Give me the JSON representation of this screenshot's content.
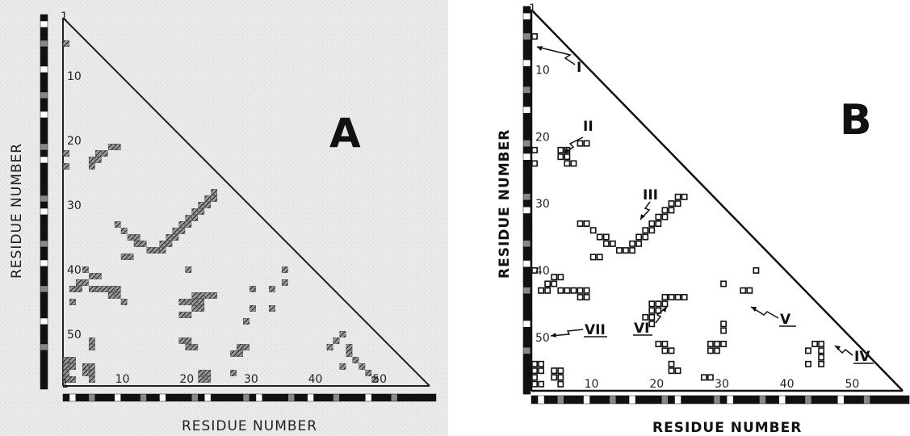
{
  "panels": [
    {
      "letter": "A",
      "axis_label": "RESIDUE NUMBER",
      "y_ticks": [
        1,
        10,
        20,
        30,
        40,
        50
      ],
      "x_ticks": [
        1,
        10,
        20,
        30,
        40,
        50
      ],
      "n_residues": 58,
      "contacts": [
        [
          5,
          1
        ],
        [
          21,
          8
        ],
        [
          21,
          9
        ],
        [
          22,
          6
        ],
        [
          22,
          7
        ],
        [
          23,
          5
        ],
        [
          23,
          6
        ],
        [
          24,
          5
        ],
        [
          22,
          1
        ],
        [
          24,
          1
        ],
        [
          28,
          24
        ],
        [
          29,
          23
        ],
        [
          29,
          24
        ],
        [
          30,
          22
        ],
        [
          30,
          23
        ],
        [
          31,
          21
        ],
        [
          31,
          22
        ],
        [
          32,
          20
        ],
        [
          32,
          21
        ],
        [
          33,
          19
        ],
        [
          33,
          20
        ],
        [
          34,
          18
        ],
        [
          34,
          19
        ],
        [
          35,
          17
        ],
        [
          35,
          18
        ],
        [
          36,
          16
        ],
        [
          36,
          17
        ],
        [
          37,
          14
        ],
        [
          37,
          15
        ],
        [
          37,
          16
        ],
        [
          36,
          12
        ],
        [
          36,
          13
        ],
        [
          35,
          11
        ],
        [
          35,
          12
        ],
        [
          34,
          10
        ],
        [
          33,
          9
        ],
        [
          38,
          10
        ],
        [
          38,
          11
        ],
        [
          40,
          4
        ],
        [
          41,
          5
        ],
        [
          41,
          6
        ],
        [
          42,
          3
        ],
        [
          42,
          4
        ],
        [
          43,
          2
        ],
        [
          43,
          3
        ],
        [
          43,
          5
        ],
        [
          43,
          6
        ],
        [
          43,
          7
        ],
        [
          43,
          8
        ],
        [
          43,
          9
        ],
        [
          44,
          8
        ],
        [
          44,
          9
        ],
        [
          45,
          2
        ],
        [
          45,
          10
        ],
        [
          40,
          20
        ],
        [
          40,
          35
        ],
        [
          42,
          35
        ],
        [
          43,
          30
        ],
        [
          43,
          33
        ],
        [
          44,
          21
        ],
        [
          44,
          22
        ],
        [
          44,
          23
        ],
        [
          44,
          24
        ],
        [
          45,
          19
        ],
        [
          45,
          20
        ],
        [
          45,
          21
        ],
        [
          45,
          22
        ],
        [
          46,
          21
        ],
        [
          46,
          22
        ],
        [
          46,
          30
        ],
        [
          46,
          33
        ],
        [
          47,
          19
        ],
        [
          47,
          20
        ],
        [
          48,
          29
        ],
        [
          51,
          19
        ],
        [
          51,
          20
        ],
        [
          52,
          20
        ],
        [
          52,
          21
        ],
        [
          52,
          28
        ],
        [
          52,
          29
        ],
        [
          53,
          27
        ],
        [
          53,
          28
        ],
        [
          51,
          5
        ],
        [
          52,
          5
        ],
        [
          50,
          44
        ],
        [
          51,
          43
        ],
        [
          52,
          42
        ],
        [
          52,
          45
        ],
        [
          53,
          45
        ],
        [
          54,
          46
        ],
        [
          55,
          47
        ],
        [
          56,
          48
        ],
        [
          57,
          49
        ],
        [
          55,
          44
        ],
        [
          54,
          1
        ],
        [
          54,
          2
        ],
        [
          55,
          1
        ],
        [
          55,
          2
        ],
        [
          55,
          4
        ],
        [
          55,
          5
        ],
        [
          56,
          1
        ],
        [
          56,
          4
        ],
        [
          56,
          5
        ],
        [
          57,
          1
        ],
        [
          57,
          2
        ],
        [
          57,
          5
        ],
        [
          56,
          22
        ],
        [
          56,
          23
        ],
        [
          57,
          22
        ],
        [
          57,
          23
        ],
        [
          56,
          27
        ]
      ],
      "seq_pattern": "bwbbhbbbwbbbhbbwbbbbhbwbbbbbhbwbbbbhbbwbbbhbbbbwbbbhbbbbbb"
    },
    {
      "letter": "B",
      "axis_label": "RESIDUE NUMBER",
      "y_ticks": [
        1,
        10,
        20,
        30,
        40,
        50
      ],
      "x_ticks": [
        10,
        20,
        30,
        40,
        50
      ],
      "n_residues": 58,
      "roman_labels": [
        "I",
        "II",
        "III",
        "IV",
        "V",
        "VI",
        "VII"
      ],
      "contacts": [
        [
          5,
          1
        ],
        [
          22,
          1
        ],
        [
          24,
          1
        ],
        [
          21,
          8
        ],
        [
          21,
          9
        ],
        [
          22,
          5
        ],
        [
          22,
          6
        ],
        [
          23,
          5
        ],
        [
          23,
          6
        ],
        [
          24,
          6
        ],
        [
          24,
          7
        ],
        [
          29,
          23
        ],
        [
          29,
          24
        ],
        [
          30,
          22
        ],
        [
          30,
          23
        ],
        [
          31,
          21
        ],
        [
          31,
          22
        ],
        [
          32,
          20
        ],
        [
          32,
          21
        ],
        [
          33,
          19
        ],
        [
          33,
          20
        ],
        [
          34,
          18
        ],
        [
          34,
          19
        ],
        [
          35,
          17
        ],
        [
          35,
          18
        ],
        [
          36,
          16
        ],
        [
          36,
          17
        ],
        [
          37,
          14
        ],
        [
          37,
          15
        ],
        [
          37,
          16
        ],
        [
          36,
          12
        ],
        [
          36,
          13
        ],
        [
          35,
          11
        ],
        [
          35,
          12
        ],
        [
          34,
          10
        ],
        [
          33,
          9
        ],
        [
          38,
          10
        ],
        [
          38,
          11
        ],
        [
          33,
          8
        ],
        [
          40,
          1
        ],
        [
          41,
          4
        ],
        [
          41,
          5
        ],
        [
          42,
          3
        ],
        [
          42,
          4
        ],
        [
          43,
          2
        ],
        [
          43,
          3
        ],
        [
          43,
          5
        ],
        [
          43,
          6
        ],
        [
          43,
          7
        ],
        [
          43,
          8
        ],
        [
          43,
          9
        ],
        [
          44,
          8
        ],
        [
          44,
          9
        ],
        [
          40,
          35
        ],
        [
          42,
          30
        ],
        [
          43,
          33
        ],
        [
          43,
          34
        ],
        [
          44,
          21
        ],
        [
          44,
          22
        ],
        [
          44,
          23
        ],
        [
          44,
          24
        ],
        [
          45,
          19
        ],
        [
          45,
          20
        ],
        [
          45,
          21
        ],
        [
          46,
          19
        ],
        [
          46,
          20
        ],
        [
          47,
          18
        ],
        [
          47,
          19
        ],
        [
          48,
          19
        ],
        [
          48,
          30
        ],
        [
          49,
          30
        ],
        [
          51,
          20
        ],
        [
          51,
          21
        ],
        [
          52,
          21
        ],
        [
          52,
          22
        ],
        [
          51,
          28
        ],
        [
          51,
          29
        ],
        [
          51,
          30
        ],
        [
          52,
          28
        ],
        [
          52,
          29
        ],
        [
          51,
          44
        ],
        [
          51,
          45
        ],
        [
          52,
          43
        ],
        [
          52,
          45
        ],
        [
          53,
          45
        ],
        [
          54,
          43
        ],
        [
          54,
          45
        ],
        [
          54,
          1
        ],
        [
          54,
          2
        ],
        [
          55,
          1
        ],
        [
          55,
          2
        ],
        [
          55,
          4
        ],
        [
          55,
          5
        ],
        [
          56,
          1
        ],
        [
          56,
          4
        ],
        [
          56,
          5
        ],
        [
          57,
          1
        ],
        [
          57,
          2
        ],
        [
          57,
          5
        ],
        [
          54,
          22
        ],
        [
          55,
          22
        ],
        [
          55,
          23
        ],
        [
          56,
          27
        ],
        [
          56,
          28
        ]
      ],
      "seq_pattern": "bwbbhbbbwbbbhbbwbbbbhbwbbbbbhbwbbbbhbbwbbbhbbbbwbbbhbbbbbb"
    }
  ]
}
